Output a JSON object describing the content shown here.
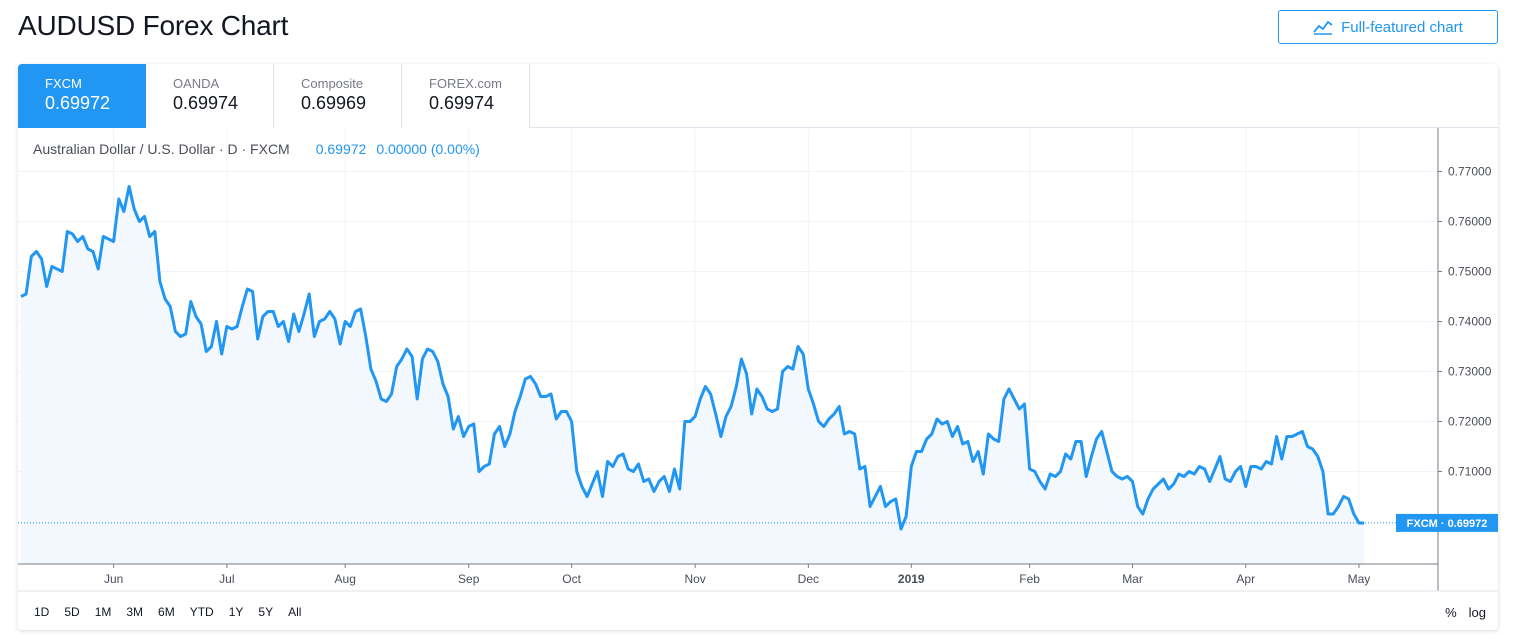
{
  "page": {
    "title": "AUDUSD Forex Chart",
    "full_chart_label": "Full-featured chart"
  },
  "tabs": [
    {
      "name": "FXCM",
      "value": "0.69972",
      "active": true
    },
    {
      "name": "OANDA",
      "value": "0.69974",
      "active": false
    },
    {
      "name": "Composite",
      "value": "0.69969",
      "active": false
    },
    {
      "name": "FOREX.com",
      "value": "0.69974",
      "active": false
    }
  ],
  "legend": {
    "symbol": "Australian Dollar / U.S. Dollar · D · FXCM",
    "last": "0.69972",
    "change": "0.00000 (0.00%)"
  },
  "range_buttons": [
    "1D",
    "5D",
    "1M",
    "3M",
    "6M",
    "YTD",
    "1Y",
    "5Y",
    "All"
  ],
  "scale_options": [
    "%",
    "log"
  ],
  "colors": {
    "line": "#2196f3",
    "fill": "#f3f8fe",
    "accent": "#2196f3"
  },
  "chart_data": {
    "type": "area",
    "symbol": "AUDUSD",
    "source": "FXCM",
    "ylim": [
      0.6915,
      0.7785
    ],
    "y_ticks": [
      "0.77000",
      "0.76000",
      "0.75000",
      "0.74000",
      "0.73000",
      "0.72000",
      "0.71000"
    ],
    "y_tick_values": [
      0.77,
      0.76,
      0.75,
      0.74,
      0.73,
      0.72,
      0.71
    ],
    "x_ticks": [
      {
        "label": "Jun",
        "index": 18
      },
      {
        "label": "Jul",
        "index": 40
      },
      {
        "label": "Aug",
        "index": 63
      },
      {
        "label": "Sep",
        "index": 87
      },
      {
        "label": "Oct",
        "index": 107
      },
      {
        "label": "Nov",
        "index": 131
      },
      {
        "label": "Dec",
        "index": 153
      },
      {
        "label": "2019",
        "index": 173,
        "bold": true
      },
      {
        "label": "Feb",
        "index": 196
      },
      {
        "label": "Mar",
        "index": 216
      },
      {
        "label": "Apr",
        "index": 238
      },
      {
        "label": "May",
        "index": 260
      }
    ],
    "last_label": "FXCM · 0.69972",
    "last_value": 0.69972,
    "values": [
      0.745,
      0.7455,
      0.753,
      0.754,
      0.7525,
      0.747,
      0.751,
      0.7505,
      0.75,
      0.758,
      0.7575,
      0.756,
      0.757,
      0.7545,
      0.754,
      0.7505,
      0.757,
      0.7565,
      0.756,
      0.7645,
      0.762,
      0.767,
      0.7625,
      0.76,
      0.761,
      0.757,
      0.758,
      0.748,
      0.7445,
      0.743,
      0.738,
      0.737,
      0.7375,
      0.744,
      0.741,
      0.7395,
      0.734,
      0.735,
      0.74,
      0.7335,
      0.739,
      0.7385,
      0.739,
      0.743,
      0.7465,
      0.746,
      0.7365,
      0.741,
      0.742,
      0.742,
      0.739,
      0.74,
      0.736,
      0.7415,
      0.738,
      0.7415,
      0.7455,
      0.737,
      0.74,
      0.7405,
      0.742,
      0.7405,
      0.7355,
      0.74,
      0.739,
      0.742,
      0.7425,
      0.737,
      0.7305,
      0.728,
      0.7245,
      0.724,
      0.7255,
      0.731,
      0.7325,
      0.7345,
      0.733,
      0.7245,
      0.7325,
      0.7345,
      0.734,
      0.732,
      0.7275,
      0.725,
      0.7185,
      0.721,
      0.717,
      0.719,
      0.7195,
      0.71,
      0.711,
      0.7115,
      0.7175,
      0.719,
      0.715,
      0.7175,
      0.722,
      0.725,
      0.7285,
      0.729,
      0.7275,
      0.725,
      0.725,
      0.7255,
      0.7205,
      0.722,
      0.722,
      0.72,
      0.71,
      0.707,
      0.705,
      0.7075,
      0.71,
      0.705,
      0.712,
      0.711,
      0.713,
      0.7135,
      0.7105,
      0.71,
      0.7115,
      0.708,
      0.7085,
      0.706,
      0.708,
      0.709,
      0.706,
      0.7105,
      0.7065,
      0.72,
      0.72,
      0.721,
      0.7245,
      0.727,
      0.7255,
      0.7215,
      0.717,
      0.721,
      0.723,
      0.727,
      0.7325,
      0.7295,
      0.7215,
      0.7265,
      0.725,
      0.7225,
      0.722,
      0.7225,
      0.73,
      0.731,
      0.7305,
      0.735,
      0.7335,
      0.7265,
      0.7235,
      0.72,
      0.719,
      0.7205,
      0.7215,
      0.723,
      0.7175,
      0.718,
      0.7175,
      0.7105,
      0.711,
      0.703,
      0.705,
      0.707,
      0.703,
      0.704,
      0.7045,
      0.6985,
      0.701,
      0.711,
      0.714,
      0.714,
      0.7165,
      0.7175,
      0.7205,
      0.7195,
      0.72,
      0.717,
      0.719,
      0.7155,
      0.716,
      0.712,
      0.714,
      0.7095,
      0.7175,
      0.7165,
      0.716,
      0.7245,
      0.7265,
      0.7245,
      0.7225,
      0.7235,
      0.7105,
      0.71,
      0.708,
      0.7065,
      0.7095,
      0.709,
      0.71,
      0.7135,
      0.7125,
      0.716,
      0.716,
      0.709,
      0.713,
      0.7165,
      0.718,
      0.714,
      0.71,
      0.709,
      0.7085,
      0.709,
      0.708,
      0.703,
      0.7015,
      0.7045,
      0.7065,
      0.7075,
      0.7085,
      0.7065,
      0.7075,
      0.7095,
      0.709,
      0.71,
      0.7095,
      0.711,
      0.7105,
      0.708,
      0.7105,
      0.713,
      0.7085,
      0.708,
      0.71,
      0.711,
      0.707,
      0.711,
      0.711,
      0.7105,
      0.712,
      0.7115,
      0.717,
      0.7125,
      0.717,
      0.717,
      0.7175,
      0.718,
      0.715,
      0.7145,
      0.713,
      0.71,
      0.7015,
      0.7015,
      0.703,
      0.705,
      0.7045,
      0.7015,
      0.6997,
      0.6997
    ]
  }
}
